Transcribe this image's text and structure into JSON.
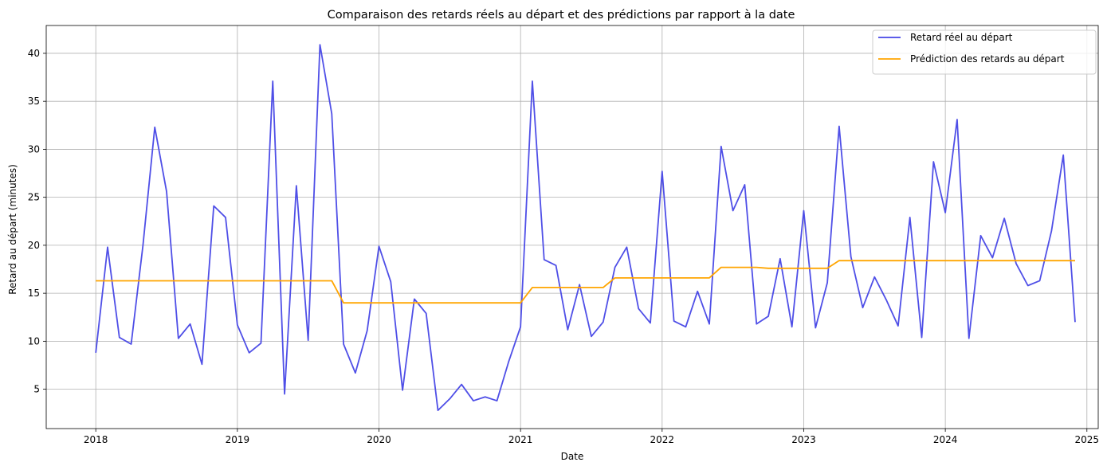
{
  "chart_data": {
    "type": "line",
    "title": "Comparaison des retards réels au départ et des prédictions par rapport à la date",
    "xlabel": "Date",
    "ylabel": "Retard au départ (minutes)",
    "xlim": [
      2017.65,
      2025.08
    ],
    "ylim": [
      0.9,
      42.9
    ],
    "x_ticks": [
      2018,
      2019,
      2020,
      2021,
      2022,
      2023,
      2024,
      2025
    ],
    "x_tick_labels": [
      "2018",
      "2019",
      "2020",
      "2021",
      "2022",
      "2023",
      "2024",
      "2025"
    ],
    "y_ticks": [
      5,
      10,
      15,
      20,
      25,
      30,
      35,
      40
    ],
    "y_tick_labels": [
      "5",
      "10",
      "15",
      "20",
      "25",
      "30",
      "35",
      "40"
    ],
    "grid": true,
    "legend_position": "top-right",
    "x_start": "2018-01",
    "x_frequency": "monthly",
    "series": [
      {
        "name": "Retard réel au départ",
        "color": "#4646e6",
        "values": [
          8.8,
          19.8,
          10.4,
          9.7,
          20.0,
          32.3,
          25.6,
          10.3,
          11.8,
          7.6,
          24.1,
          22.9,
          11.7,
          8.8,
          9.8,
          37.1,
          4.5,
          26.2,
          10.1,
          40.9,
          33.7,
          9.7,
          6.7,
          11.1,
          19.9,
          16.2,
          4.9,
          14.4,
          12.9,
          2.8,
          4.0,
          5.5,
          3.8,
          4.2,
          3.8,
          7.9,
          11.5,
          37.1,
          18.5,
          17.9,
          11.2,
          15.9,
          10.5,
          12.0,
          17.7,
          19.8,
          13.4,
          11.9,
          27.7,
          12.1,
          11.5,
          15.2,
          11.8,
          30.3,
          23.6,
          26.3,
          11.8,
          12.6,
          18.6,
          11.5,
          23.6,
          11.4,
          16.1,
          32.4,
          18.8,
          13.5,
          16.7,
          14.3,
          11.6,
          22.9,
          10.4,
          28.7,
          23.4,
          33.1,
          10.3,
          21.0,
          18.7,
          22.8,
          18.1,
          15.8,
          16.3,
          21.5,
          29.4,
          12.0
        ]
      },
      {
        "name": "Prédiction des retards au départ",
        "color": "#ffa500",
        "values": [
          16.3,
          16.3,
          16.3,
          16.3,
          16.3,
          16.3,
          16.3,
          16.3,
          16.3,
          16.3,
          16.3,
          16.3,
          16.3,
          16.3,
          16.3,
          16.3,
          16.3,
          16.3,
          16.3,
          16.3,
          16.3,
          14.0,
          14.0,
          14.0,
          14.0,
          14.0,
          14.0,
          14.0,
          14.0,
          14.0,
          14.0,
          14.0,
          14.0,
          14.0,
          14.0,
          14.0,
          14.0,
          15.6,
          15.6,
          15.6,
          15.6,
          15.6,
          15.6,
          15.6,
          16.6,
          16.6,
          16.6,
          16.6,
          16.6,
          16.6,
          16.6,
          16.6,
          16.6,
          17.7,
          17.7,
          17.7,
          17.7,
          17.6,
          17.6,
          17.6,
          17.6,
          17.6,
          17.6,
          18.4,
          18.4,
          18.4,
          18.4,
          18.4,
          18.4,
          18.4,
          18.4,
          18.4,
          18.4,
          18.4,
          18.4,
          18.4,
          18.4,
          18.4,
          18.4,
          18.4,
          18.4,
          18.4,
          18.4,
          18.4
        ]
      }
    ]
  }
}
